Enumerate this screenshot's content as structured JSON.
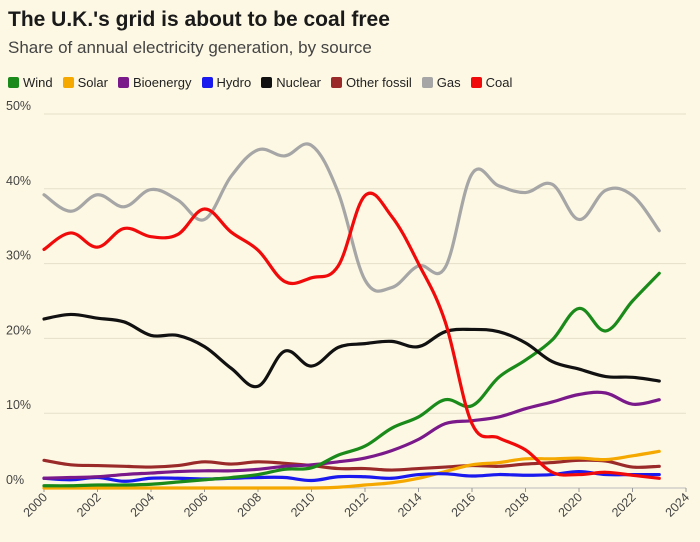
{
  "chart_data": {
    "type": "line",
    "title": "The U.K.'s grid is about to be coal free",
    "subtitle": "Share of annual electricity generation, by source",
    "xlabel": "",
    "ylabel": "",
    "xlim": [
      2000,
      2024
    ],
    "ylim": [
      0,
      50
    ],
    "x_ticks": [
      "2000",
      "2002",
      "2004",
      "2006",
      "2008",
      "2010",
      "2012",
      "2014",
      "2016",
      "2018",
      "2020",
      "2022",
      "2024"
    ],
    "y_ticks": [
      "0%",
      "10%",
      "20%",
      "30%",
      "40%",
      "50%"
    ],
    "grid": "horizontal",
    "legend_position": "top-left",
    "x": [
      2000,
      2001,
      2002,
      2003,
      2004,
      2005,
      2006,
      2007,
      2008,
      2009,
      2010,
      2011,
      2012,
      2013,
      2014,
      2015,
      2016,
      2017,
      2018,
      2019,
      2020,
      2021,
      2022,
      2023
    ],
    "series": [
      {
        "name": "Wind",
        "color": "#1a8a1a",
        "values": [
          0.3,
          0.3,
          0.4,
          0.4,
          0.5,
          0.8,
          1.1,
          1.4,
          1.8,
          2.5,
          2.7,
          4.4,
          5.6,
          8.0,
          9.5,
          11.8,
          11.0,
          14.8,
          17.1,
          19.8,
          24.0,
          21.0,
          25.0,
          28.7
        ]
      },
      {
        "name": "Solar",
        "color": "#f5a800",
        "values": [
          0,
          0,
          0,
          0,
          0,
          0,
          0,
          0,
          0,
          0,
          0,
          0.1,
          0.4,
          0.7,
          1.3,
          2.2,
          3.1,
          3.4,
          3.9,
          3.9,
          4.0,
          3.8,
          4.3,
          4.9
        ]
      },
      {
        "name": "Bioenergy",
        "color": "#7a1a8a",
        "values": [
          1.3,
          1.4,
          1.5,
          1.8,
          2.0,
          2.2,
          2.3,
          2.3,
          2.5,
          2.9,
          3.1,
          3.5,
          4.0,
          5.0,
          6.5,
          8.6,
          9.0,
          9.5,
          10.6,
          11.5,
          12.5,
          12.7,
          11.2,
          11.8
        ]
      },
      {
        "name": "Hydro",
        "color": "#1a1aee",
        "values": [
          1.3,
          1.1,
          1.4,
          0.9,
          1.3,
          1.3,
          1.2,
          1.3,
          1.4,
          1.4,
          1.0,
          1.5,
          1.5,
          1.3,
          1.8,
          1.9,
          1.6,
          1.8,
          1.7,
          1.8,
          2.2,
          1.8,
          1.8,
          1.8
        ]
      },
      {
        "name": "Nuclear",
        "color": "#111111",
        "values": [
          22.6,
          23.2,
          22.7,
          22.2,
          20.4,
          20.4,
          18.9,
          16.0,
          13.6,
          18.3,
          16.3,
          18.8,
          19.3,
          19.6,
          18.9,
          20.9,
          21.2,
          20.9,
          19.4,
          16.9,
          15.9,
          14.9,
          14.8,
          14.3
        ]
      },
      {
        "name": "Other fossil",
        "color": "#9a2a2a",
        "values": [
          3.7,
          3.1,
          3.0,
          2.9,
          2.8,
          3.0,
          3.5,
          3.2,
          3.5,
          3.3,
          3.0,
          2.6,
          2.6,
          2.4,
          2.6,
          2.8,
          3.0,
          2.9,
          3.2,
          3.4,
          3.7,
          3.6,
          2.8,
          2.9
        ]
      },
      {
        "name": "Gas",
        "color": "#a6a6a6",
        "values": [
          39.2,
          37.0,
          39.2,
          37.6,
          39.9,
          38.5,
          35.9,
          41.7,
          45.2,
          44.4,
          45.8,
          39.5,
          27.8,
          26.8,
          29.7,
          29.5,
          42.0,
          40.4,
          39.5,
          40.6,
          35.9,
          39.8,
          39.1,
          34.4
        ]
      },
      {
        "name": "Coal",
        "color": "#f00a0a",
        "values": [
          31.9,
          34.1,
          32.2,
          34.7,
          33.6,
          33.9,
          37.3,
          34.2,
          31.8,
          27.6,
          28.1,
          29.7,
          39.1,
          36.3,
          30.0,
          22.2,
          8.6,
          6.7,
          5.1,
          2.1,
          1.8,
          2.1,
          1.7,
          1.3
        ]
      }
    ]
  }
}
